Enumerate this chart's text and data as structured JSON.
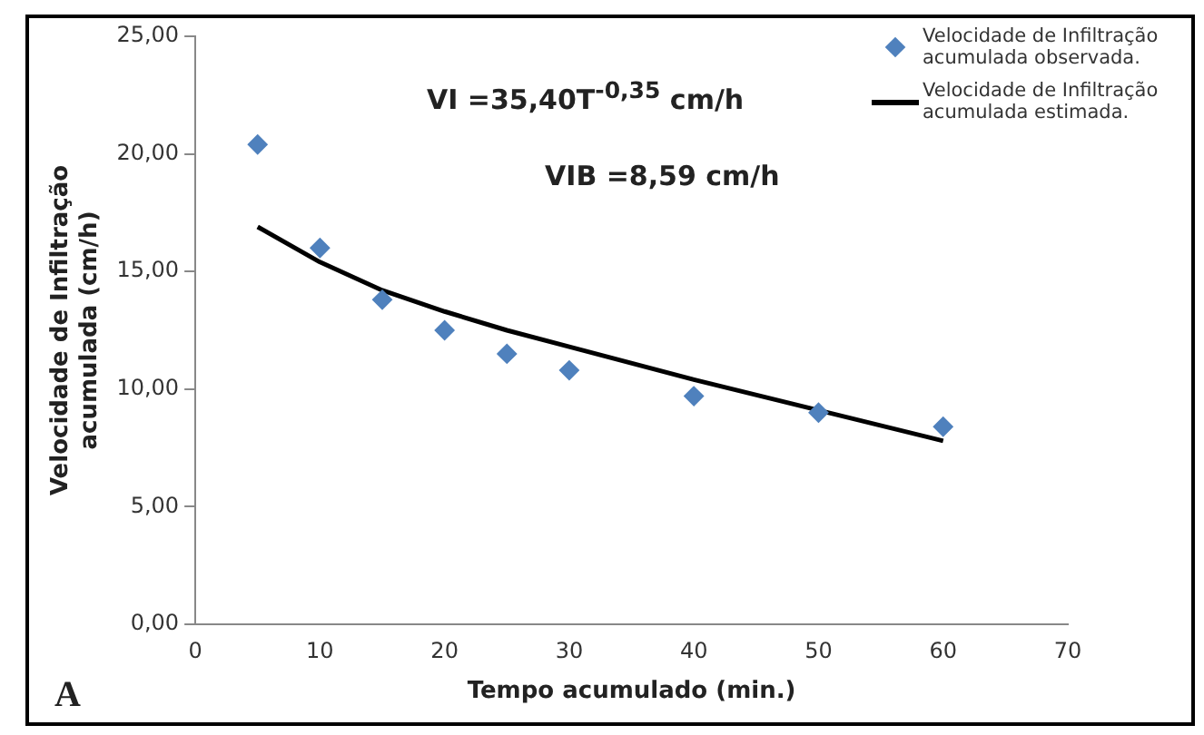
{
  "chart_data": {
    "type": "scatter",
    "xlabel": "Tempo acumulado (min.)",
    "ylabel": "Velocidade de Infiltração acumulada (cm/h)",
    "xlim": [
      0,
      70
    ],
    "xticks": [
      0,
      10,
      20,
      30,
      40,
      50,
      60,
      70
    ],
    "ylim": [
      0,
      25
    ],
    "yticks": [
      {
        "value": 0,
        "label": "0,00"
      },
      {
        "value": 5,
        "label": "5,00"
      },
      {
        "value": 10,
        "label": "10,00"
      },
      {
        "value": 15,
        "label": "15,00"
      },
      {
        "value": 20,
        "label": "20,00"
      },
      {
        "value": 25,
        "label": "25,00"
      }
    ],
    "grid": false,
    "legend": "top right",
    "series": [
      {
        "name": "Velocidade de Infiltração acumulada observada.",
        "marker": "diamond",
        "color": "#4f81bd",
        "x": [
          5,
          10,
          15,
          20,
          25,
          30,
          40,
          50,
          60
        ],
        "values": [
          20.4,
          16.0,
          13.8,
          12.5,
          11.5,
          10.8,
          9.7,
          9.0,
          8.4
        ]
      },
      {
        "name": "Velocidade de Infiltração acumulada estimada.",
        "type": "line",
        "marker": "none",
        "color": "#000000",
        "x": [
          5,
          10,
          15,
          20,
          25,
          30,
          40,
          50,
          60
        ],
        "values": [
          16.9,
          15.4,
          14.2,
          13.3,
          12.5,
          11.8,
          10.4,
          9.1,
          7.8
        ]
      }
    ],
    "annotations": [
      "VI =35,40T$^{-0,35}$ cm/h",
      "VIB =8,59 cm/h",
      "A"
    ]
  }
}
